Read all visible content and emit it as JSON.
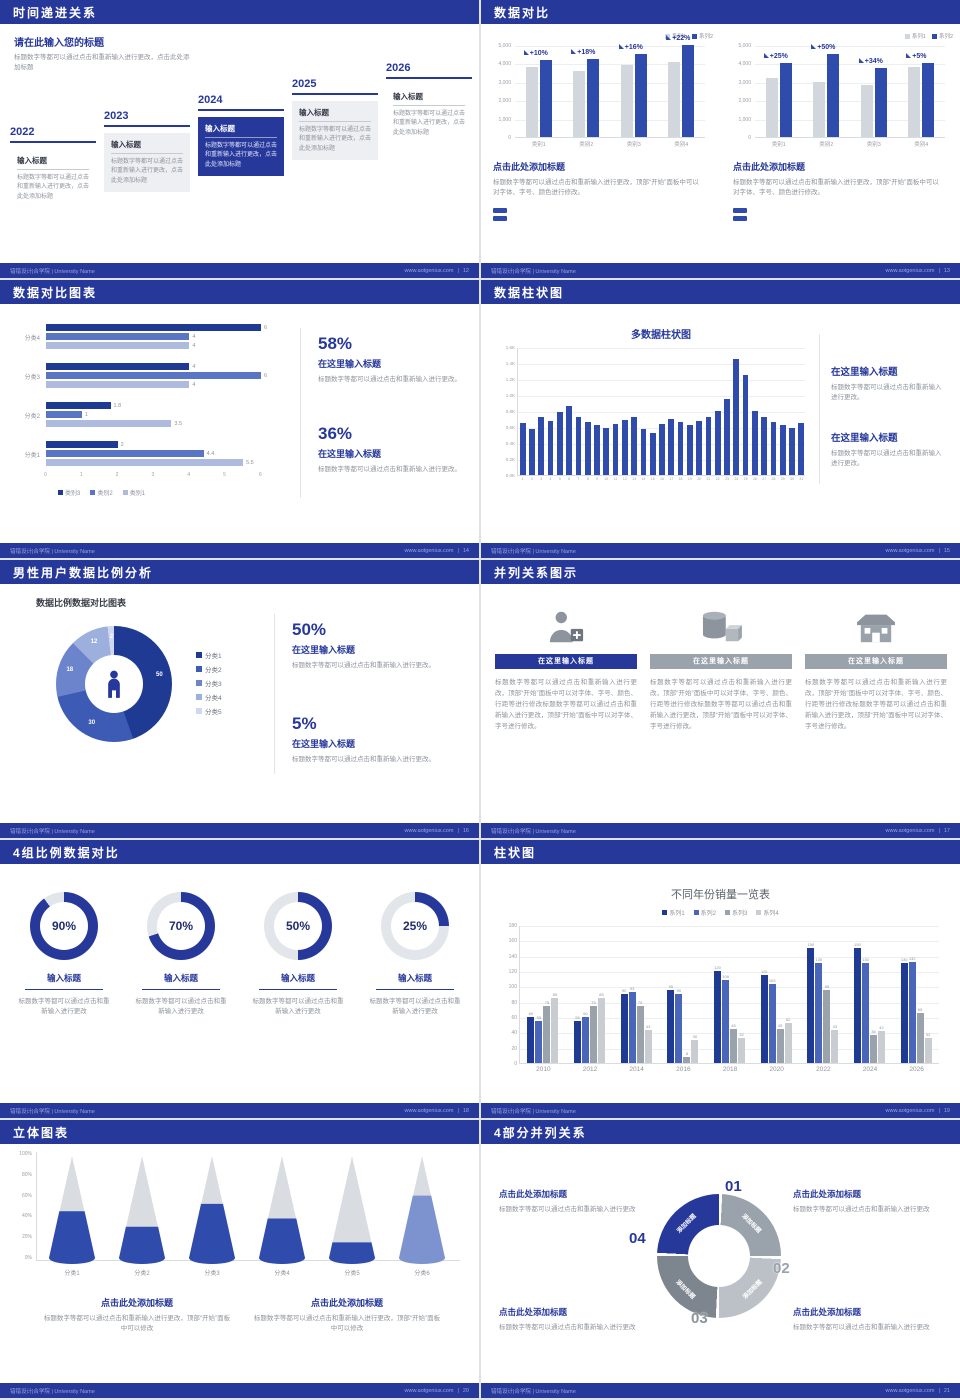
{
  "page": {
    "footer_left": "错错设计|合学院 | University Name",
    "footer_site": "www.aotgenius.com"
  },
  "colors": {
    "primary": "#27389b",
    "bar_blue": "#2f4bab",
    "bar_gray": "#d2d6dd"
  },
  "slides": {
    "s1": {
      "page_no": "12",
      "header": "时间递进关系",
      "intro_title": "请在此输入您的标题",
      "intro_text": "标题数字等都可以通过点击和重新输入进行更改，点击此处添加标题",
      "box_title": "输入标题",
      "box_text": "标题数字等都可以通过点击和重新输入进行更改，点击此处添加标题",
      "years": [
        "2022",
        "2023",
        "2024",
        "2025",
        "2026"
      ]
    },
    "s2": {
      "page_no": "13",
      "header": "数据对比",
      "legend": [
        "系列1",
        "系列2"
      ],
      "y_ticks": [
        "5,000",
        "4,000",
        "3,000",
        "2,000",
        "1,000",
        "0"
      ],
      "y_max": 5000,
      "charts": [
        {
          "type": "bar",
          "categories": [
            "类别1",
            "类别2",
            "类别3",
            "类别4"
          ],
          "series": [
            {
              "name": "系列1",
              "values": [
                3800,
                3600,
                3900,
                4100
              ]
            },
            {
              "name": "系列2",
              "values": [
                4180,
                4250,
                4520,
                5000
              ]
            }
          ],
          "deltas": [
            "+10%",
            "+18%",
            "+16%",
            "+22%"
          ],
          "caption_title": "点击此处添加标题",
          "caption_text": "标题数字等都可以通过点击和重新输入进行更改，顶部“开始”面板中可以对字体、字号、颜色进行修改。"
        },
        {
          "type": "bar",
          "categories": [
            "类别1",
            "类别2",
            "类别3",
            "类别4"
          ],
          "series": [
            {
              "name": "系列1",
              "values": [
                3200,
                3000,
                2800,
                3800
              ]
            },
            {
              "name": "系列2",
              "values": [
                4000,
                4500,
                3750,
                4000
              ]
            }
          ],
          "deltas": [
            "+25%",
            "+50%",
            "+34%",
            "+5%"
          ],
          "caption_title": "点击此处添加标题",
          "caption_text": "标题数字等都可以通过点击和重新输入进行更改，顶部“开始”面板中可以对字体、字号、颜色进行修改。"
        }
      ]
    },
    "s3": {
      "page_no": "14",
      "header": "数据对比图表",
      "chart": {
        "type": "bar",
        "categories": [
          "分类4",
          "分类3",
          "分类2",
          "分类1"
        ],
        "series": [
          {
            "name": "类别3",
            "color": "#1f3a93",
            "values": [
              6,
              4,
              1.8,
              2
            ]
          },
          {
            "name": "类别2",
            "color": "#5a75c4",
            "values": [
              4,
              6,
              1,
              4.4
            ]
          },
          {
            "name": "类别1",
            "color": "#aebbde",
            "values": [
              4,
              4,
              3.5,
              5.5
            ]
          }
        ],
        "x_ticks": [
          "0",
          "1",
          "2",
          "3",
          "4",
          "5",
          "6"
        ],
        "x_max": 6
      },
      "stats": [
        {
          "value": "58%",
          "title": "在这里输入标题",
          "text": "标题数字等都可以通过点击和重新输入进行更改。"
        },
        {
          "value": "36%",
          "title": "在这里输入标题",
          "text": "标题数字等都可以通过点击和重新输入进行更改。"
        }
      ]
    },
    "s4": {
      "page_no": "15",
      "header": "数据柱状图",
      "chart": {
        "type": "bar",
        "title": "多数据柱状图",
        "x": [
          1,
          2,
          3,
          4,
          5,
          6,
          7,
          8,
          9,
          10,
          11,
          12,
          13,
          14,
          15,
          16,
          17,
          18,
          19,
          20,
          21,
          22,
          23,
          24,
          25,
          26,
          27,
          28,
          29,
          30,
          31
        ],
        "values": [
          650,
          580,
          720,
          680,
          790,
          860,
          730,
          660,
          620,
          590,
          640,
          690,
          730,
          580,
          520,
          640,
          700,
          660,
          620,
          680,
          730,
          800,
          950,
          1450,
          1250,
          800,
          730,
          660,
          620,
          590,
          650
        ],
        "y_ticks": [
          "1.6K",
          "1.4K",
          "1.2K",
          "1.0K",
          "0.8K",
          "0.6K",
          "0.4K",
          "0.2K",
          "0.0K"
        ],
        "y_max": 1600
      },
      "blocks": [
        {
          "title": "在这里输入标题",
          "text": "标题数字等都可以通过点击和重新输入进行更改。"
        },
        {
          "title": "在这里输入标题",
          "text": "标题数字等都可以通过点击和重新输入进行更改。"
        }
      ]
    },
    "s5": {
      "page_no": "16",
      "header": "男性用户数据比例分析",
      "chart_title": "数据比例数据对比图表",
      "chart": {
        "type": "pie",
        "labels": [
          "分类1",
          "分类2",
          "分类3",
          "分类4",
          "分类5"
        ],
        "values": [
          50,
          30,
          18,
          12,
          2
        ],
        "colors": [
          "#1f3a93",
          "#3d5bb5",
          "#6b84cc",
          "#9dafdd",
          "#cfd8ef"
        ]
      },
      "stats": [
        {
          "value": "50%",
          "title": "在这里输入标题",
          "text": "标题数字等都可以通过点击和重新输入进行更改。"
        },
        {
          "value": "5%",
          "title": "在这里输入标题",
          "text": "标题数字等都可以通过点击和重新输入进行更改。"
        }
      ]
    },
    "s6": {
      "page_no": "17",
      "header": "并列关系图示",
      "cols": [
        {
          "icon": "nurse-icon",
          "header": "在这里输入标题",
          "text": "标题数字等都可以通过点击和重新输入进行更改，顶部“开始”面板中可以对字体、字号、颜色、行距等进行修改标题数字等都可以通过点击和重新输入进行更改，顶部“开始”面板中可以对字体、字号进行修改。"
        },
        {
          "icon": "storage-icon",
          "header": "在这里输入标题",
          "text": "标题数字等都可以通过点击和重新输入进行更改，顶部“开始”面板中可以对字体、字号、颜色、行距等进行修改标题数字等都可以通过点击和重新输入进行更改，顶部“开始”面板中可以对字体、字号进行修改。"
        },
        {
          "icon": "building-icon",
          "header": "在这里输入标题",
          "text": "标题数字等都可以通过点击和重新输入进行更改，顶部“开始”面板中可以对字体、字号、颜色、行距等进行修改标题数字等都可以通过点击和重新输入进行更改，顶部“开始”面板中可以对字体、字号进行修改。"
        }
      ]
    },
    "s7": {
      "page_no": "18",
      "header": "4组比例数据对比",
      "items": [
        {
          "pct": 90,
          "label": "90%",
          "title": "输入标题",
          "text": "标题数字等都可以通过点击和重新输入进行更改"
        },
        {
          "pct": 70,
          "label": "70%",
          "title": "输入标题",
          "text": "标题数字等都可以通过点击和重新输入进行更改"
        },
        {
          "pct": 50,
          "label": "50%",
          "title": "输入标题",
          "text": "标题数字等都可以通过点击和重新输入进行更改"
        },
        {
          "pct": 25,
          "label": "25%",
          "title": "输入标题",
          "text": "标题数字等都可以通过点击和重新输入进行更改"
        }
      ]
    },
    "s8": {
      "page_no": "19",
      "header": "柱状图",
      "chart": {
        "type": "bar",
        "title": "不同年份销量一览表",
        "categories": [
          "2010",
          "2012",
          "2014",
          "2016",
          "2018",
          "2020",
          "2022",
          "2024",
          "2026"
        ],
        "series": [
          {
            "name": "系列1",
            "color": "#1f3a93",
            "values": [
              60,
              55,
              90,
              95,
              120,
              115,
              150,
              150,
              130
            ]
          },
          {
            "name": "系列2",
            "color": "#4a66bb",
            "values": [
              55,
              60,
              93,
              90,
              108,
              103,
              130,
              130,
              132
            ]
          },
          {
            "name": "系列3",
            "color": "#9aa2ac",
            "values": [
              75,
              75,
              75,
              8,
              45,
              45,
              95,
              36,
              65
            ]
          },
          {
            "name": "系列4",
            "color": "#c9cdd2",
            "values": [
              85,
              85,
              43,
              30,
              32,
              52,
              43,
              42,
              32
            ]
          }
        ],
        "y_max": 180,
        "y_step": 20
      }
    },
    "s9": {
      "page_no": "20",
      "header": "立体图表",
      "chart": {
        "type": "bar",
        "categories": [
          "分类1",
          "分类2",
          "分类3",
          "分类4",
          "分类5",
          "分类6"
        ],
        "fill_pct": [
          45,
          30,
          52,
          38,
          15,
          60
        ],
        "y_ticks": [
          "100%",
          "80%",
          "60%",
          "40%",
          "20%",
          "0%"
        ]
      },
      "captions": [
        {
          "title": "点击此处添加标题",
          "text": "标题数字等都可以通过点击和重新输入进行更改，顶部“开始”面板中可以修改"
        },
        {
          "title": "点击此处添加标题",
          "text": "标题数字等都可以通过点击和重新输入进行更改，顶部“开始”面板中可以修改"
        }
      ]
    },
    "s10": {
      "page_no": "21",
      "header": "4部分并列关系",
      "segments": [
        {
          "no": "01",
          "label": "添加标题"
        },
        {
          "no": "02",
          "label": "添加标题"
        },
        {
          "no": "03",
          "label": "添加标题"
        },
        {
          "no": "04",
          "label": "添加标题"
        }
      ],
      "blocks": [
        {
          "title": "点击此处添加标题",
          "text": "标题数字等都可以通过点击和重新输入进行更改"
        },
        {
          "title": "点击此处添加标题",
          "text": "标题数字等都可以通过点击和重新输入进行更改"
        },
        {
          "title": "点击此处添加标题",
          "text": "标题数字等都可以通过点击和重新输入进行更改"
        },
        {
          "title": "点击此处添加标题",
          "text": "标题数字等都可以通过点击和重新输入进行更改"
        }
      ]
    }
  }
}
